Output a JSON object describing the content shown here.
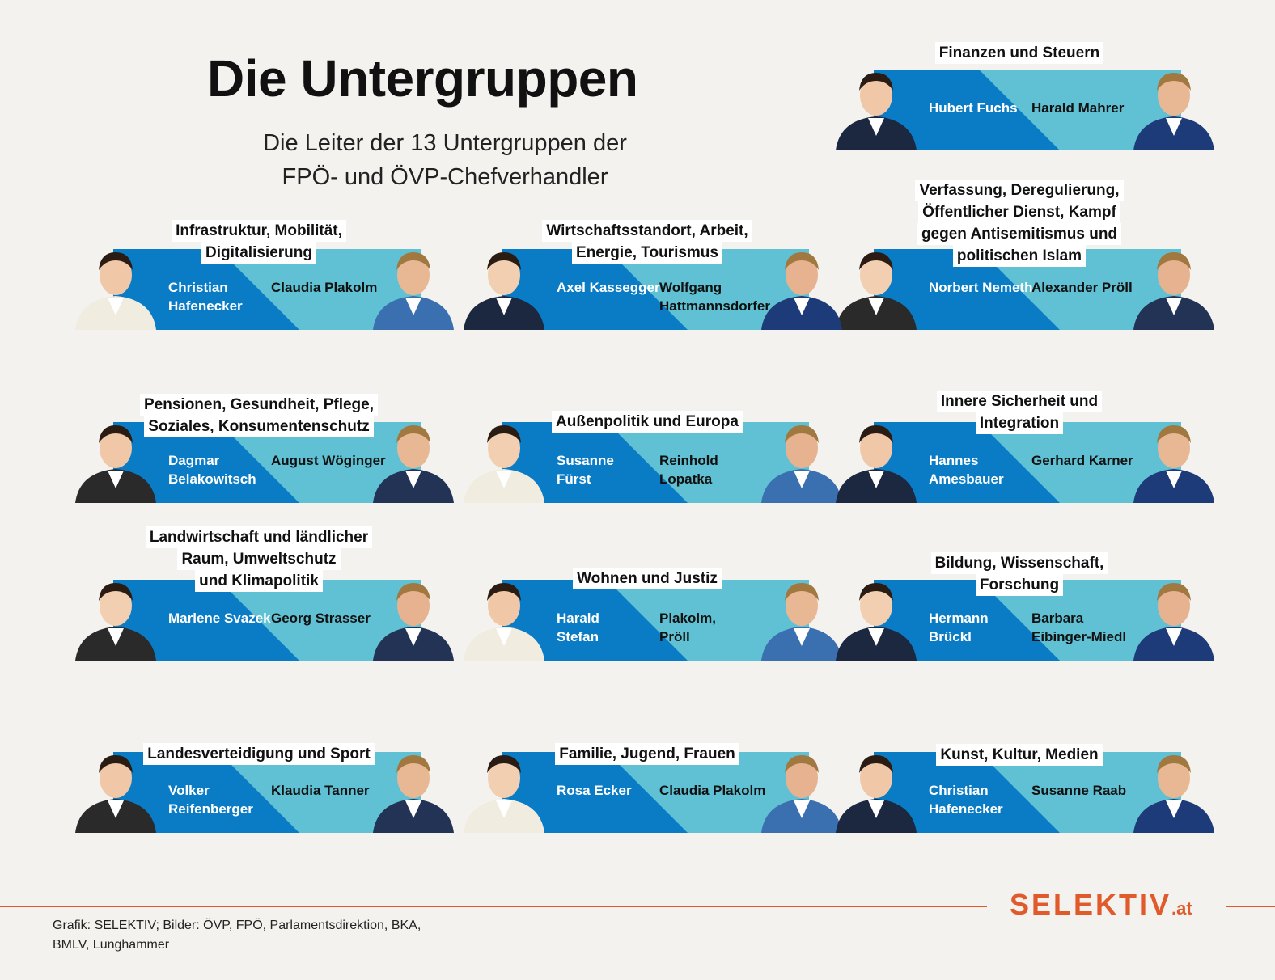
{
  "title": "Die Untergruppen",
  "subtitle": "Die Leiter der 13 Untergruppen der FPÖ- und ÖVP-Chefverhandler",
  "colors": {
    "dark_blue": "#0a7cc6",
    "light_blue": "#5fc1d3",
    "accent": "#e05a2b"
  },
  "groups": [
    {
      "title_lines": [
        "Finanzen und Steuern"
      ],
      "left": "Hubert Fuchs",
      "right": "Harald Mahrer"
    },
    {
      "title_lines": [
        "Verfassung, Deregulierung,",
        "Öffentlicher Dienst, Kampf",
        "gegen Antisemitismus und",
        "politischen Islam"
      ],
      "left": "Norbert Nemeth",
      "right": "Alexander Pröll"
    },
    {
      "title_lines": [
        "Infrastruktur, Mobilität,",
        "Digitalisierung"
      ],
      "left": "Christian\nHafenecker",
      "right": "Claudia Plakolm"
    },
    {
      "title_lines": [
        "Wirtschaftsstandort, Arbeit,",
        "Energie, Tourismus"
      ],
      "left": "Axel Kassegger",
      "right": "Wolfgang\nHattmannsdorfer"
    },
    {
      "title_lines": [
        "Pensionen, Gesundheit, Pflege,",
        "Soziales, Konsumentenschutz"
      ],
      "left": "Dagmar\nBelakowitsch",
      "right": "August Wöginger"
    },
    {
      "title_lines": [
        "Außenpolitik und Europa"
      ],
      "left": "Susanne\nFürst",
      "right": "Reinhold\nLopatka"
    },
    {
      "title_lines": [
        "Innere Sicherheit und",
        "Integration"
      ],
      "left": "Hannes\nAmesbauer",
      "right": "Gerhard Karner"
    },
    {
      "title_lines": [
        "Landwirtschaft und ländlicher",
        "Raum, Umweltschutz",
        "und Klimapolitik"
      ],
      "left": "Marlene Svazek",
      "right": "Georg Strasser"
    },
    {
      "title_lines": [
        "Wohnen und Justiz"
      ],
      "left": "Harald\nStefan",
      "right": "Plakolm,\nPröll"
    },
    {
      "title_lines": [
        "Bildung, Wissenschaft,",
        "Forschung"
      ],
      "left": "Hermann\nBrückl",
      "right": "Barbara\nEibinger-Miedl"
    },
    {
      "title_lines": [
        "Landesverteidigung und Sport"
      ],
      "left": "Volker\nReifenberger",
      "right": "Klaudia Tanner"
    },
    {
      "title_lines": [
        "Familie, Jugend, Frauen"
      ],
      "left": "Rosa Ecker",
      "right": "Claudia Plakolm"
    },
    {
      "title_lines": [
        "Kunst, Kultur, Medien"
      ],
      "left": "Christian\nHafenecker",
      "right": "Susanne Raab"
    }
  ],
  "logo": {
    "name": "SELEKTIV",
    "tld": ".at"
  },
  "credits": "Grafik: SELEKTIV; Bilder: ÖVP, FPÖ, Parlamentsdirektion, BKA, BMLV, Lunghammer"
}
